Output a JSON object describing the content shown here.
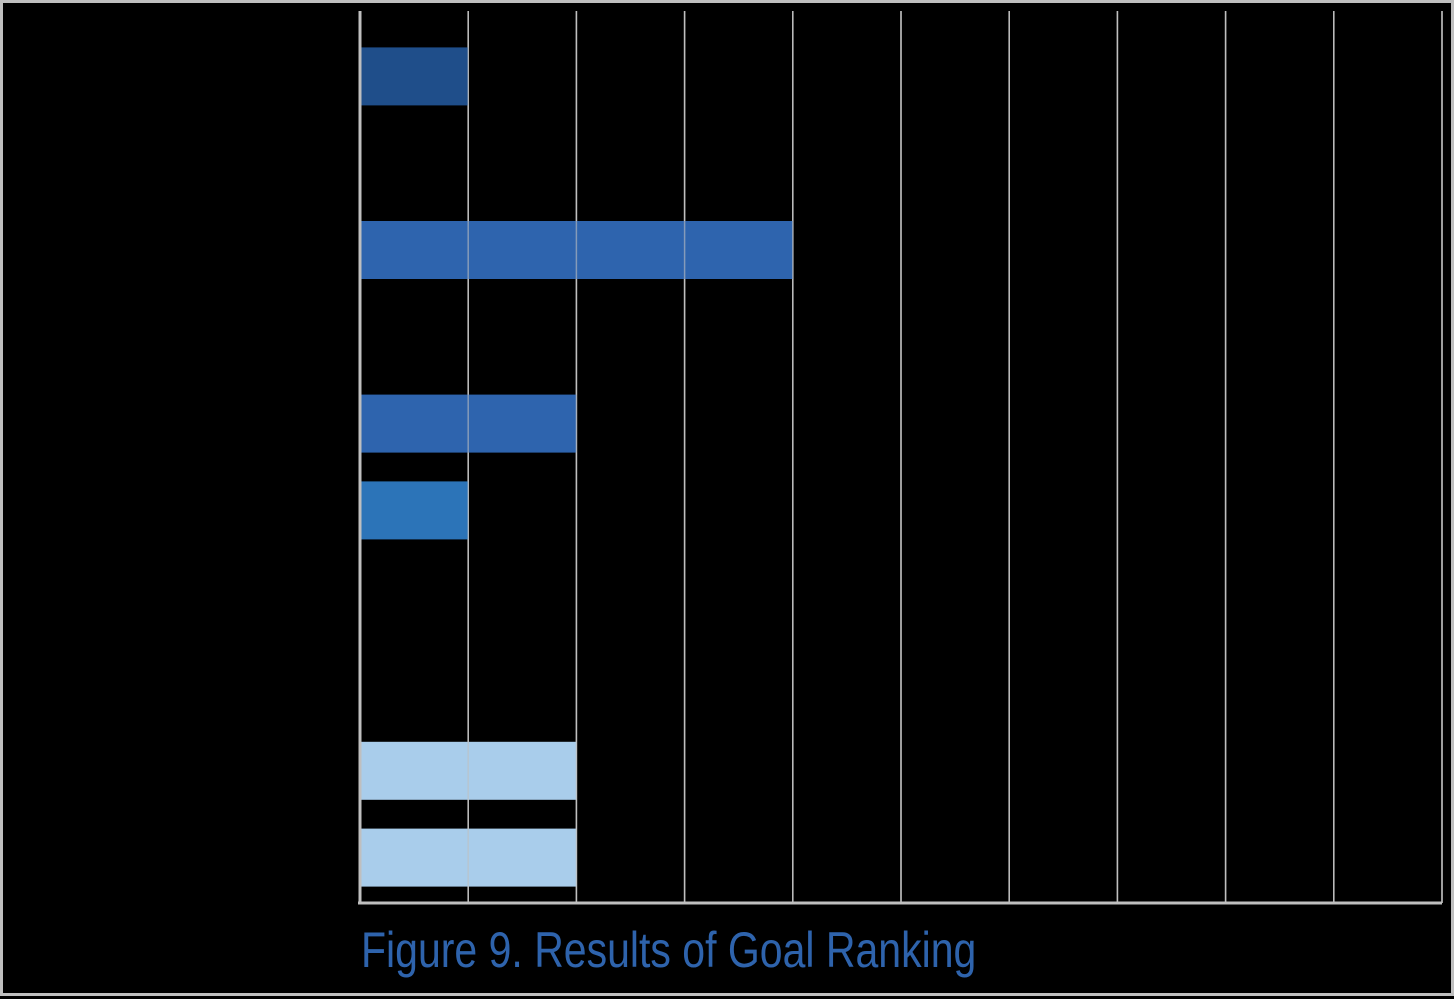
{
  "caption": "Figure 9. Results of Goal Ranking",
  "colors": {
    "background": "#000000",
    "grid": "#bfbfbf",
    "caption": "#2E63AC"
  },
  "chart_data": {
    "type": "bar",
    "orientation": "horizontal",
    "xlim": [
      0,
      10
    ],
    "grid": true,
    "categories": [
      "",
      "",
      "",
      "",
      "",
      "",
      "",
      "",
      "",
      ""
    ],
    "values": [
      1,
      0,
      4,
      0,
      2,
      1,
      0,
      0,
      2,
      2
    ],
    "bar_colors": [
      "#1F4E8A",
      "#2E64AE",
      "#2E64AE",
      "#2E64AE",
      "#2E64AE",
      "#2C74B8",
      "#2C74B8",
      "#2C74B8",
      "#A9CDEB",
      "#A9CDEB"
    ]
  }
}
